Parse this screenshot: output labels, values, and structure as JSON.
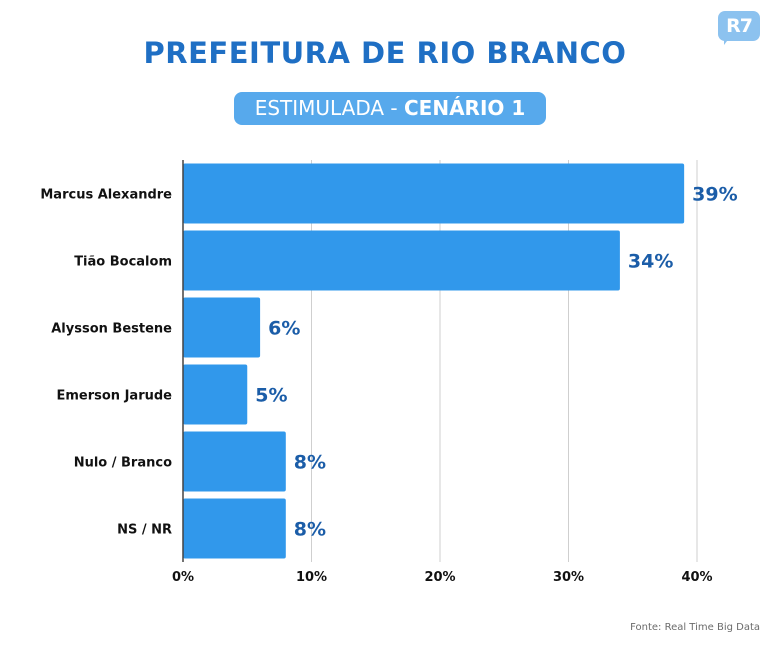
{
  "logo": {
    "text": "R7"
  },
  "title": "PREFEITURA DE RIO BRANCO",
  "subtitle": {
    "part1": "ESTIMULADA - ",
    "part2": "CENÁRIO 1"
  },
  "source": "Fonte: Real Time Big Data",
  "colors": {
    "bar": "#3198eb",
    "title": "#1f6fc4",
    "pill": "#57a9ec",
    "value_label": "#1b5da8",
    "grid": "#cfcfcf"
  },
  "chart_data": {
    "type": "bar",
    "orientation": "horizontal",
    "title": "PREFEITURA DE RIO BRANCO",
    "subtitle": "ESTIMULADA - CENÁRIO 1",
    "categories": [
      "Marcus Alexandre",
      "Tião Bocalom",
      "Alysson Bestene",
      "Emerson Jarude",
      "Nulo / Branco",
      "NS / NR"
    ],
    "values": [
      39,
      34,
      6,
      5,
      8,
      8
    ],
    "value_labels": [
      "39%",
      "34%",
      "6%",
      "5%",
      "8%",
      "8%"
    ],
    "xlim": [
      0,
      40
    ],
    "xticks": [
      0,
      10,
      20,
      30,
      40
    ],
    "xtick_labels": [
      "0%",
      "10%",
      "20%",
      "30%",
      "40%"
    ],
    "grid": true,
    "legend": "none"
  }
}
